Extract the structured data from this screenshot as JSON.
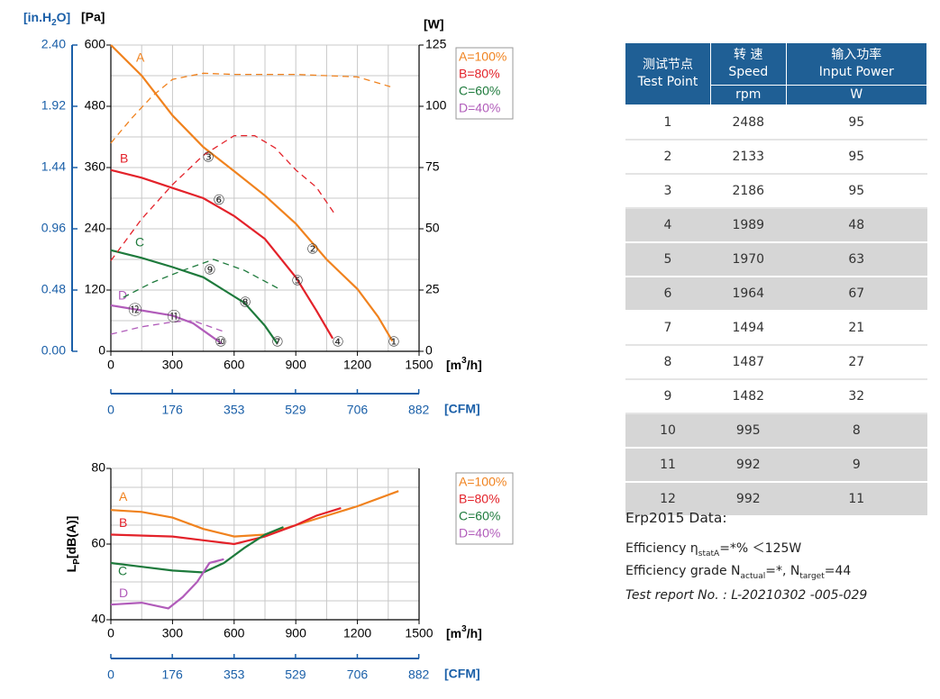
{
  "chart_data": [
    {
      "type": "line",
      "xlim": [
        0,
        1500
      ],
      "xticks": [
        0,
        300,
        600,
        900,
        1200,
        1500
      ],
      "xminor": [
        150,
        450,
        750,
        1050,
        1350
      ],
      "x_label": [
        "[m",
        "3",
        "/h]"
      ],
      "x2lim": [
        0,
        882.9
      ],
      "x2ticks": [
        0,
        176,
        353,
        529,
        706,
        882
      ],
      "x2_label": "[CFM]",
      "ylim": [
        0,
        600
      ],
      "yticks": [
        0,
        120,
        240,
        360,
        480,
        600
      ],
      "yminor": [
        60,
        180,
        300,
        420,
        540
      ],
      "y_label": "[Pa]",
      "y2lim": [
        0,
        125
      ],
      "y2ticks": [
        0,
        25,
        50,
        75,
        100,
        125
      ],
      "y2_label": "[W]",
      "y3lim": [
        0,
        2.4
      ],
      "y3ticks": [
        {
          "value": 0,
          "label": "0.00"
        },
        {
          "value": 0.48,
          "label": "0.48"
        },
        {
          "value": 0.96,
          "label": "0.96"
        },
        {
          "value": 1.44,
          "label": "1.44"
        },
        {
          "value": 1.92,
          "label": "1.92"
        },
        {
          "value": 2.4,
          "label": "2.40"
        }
      ],
      "y3_label": [
        "[in.H",
        "2",
        "O]"
      ],
      "grid": true,
      "legend": "right",
      "series": [
        {
          "name": "A=100%",
          "label": "A",
          "color": "#f0821e",
          "x": [
            0,
            150,
            300,
            450,
            600,
            750,
            900,
            1050,
            1200,
            1300,
            1370
          ],
          "values": [
            600,
            540,
            462,
            400,
            353,
            305,
            250,
            180,
            122,
            68,
            20
          ]
        },
        {
          "name": "B=80%",
          "label": "B",
          "color": "#e3222a",
          "x": [
            0,
            150,
            300,
            450,
            600,
            750,
            900,
            1000,
            1080
          ],
          "values": [
            355,
            340,
            320,
            300,
            265,
            220,
            145,
            80,
            25
          ]
        },
        {
          "name": "C=60%",
          "label": "C",
          "color": "#1e7a3c",
          "x": [
            0,
            150,
            300,
            450,
            550,
            650,
            750,
            810
          ],
          "values": [
            198,
            183,
            165,
            145,
            120,
            95,
            50,
            15
          ]
        },
        {
          "name": "D=40%",
          "label": "D",
          "color": "#b15cba",
          "x": [
            0,
            120,
            300,
            400,
            470,
            540
          ],
          "values": [
            90,
            82,
            70,
            55,
            35,
            15
          ]
        },
        {
          "axis": "y2",
          "dashed": true,
          "color": "#f0821e",
          "x": [
            0,
            100,
            200,
            300,
            450,
            600,
            900,
            1200,
            1360
          ],
          "values": [
            85,
            95,
            104,
            111,
            113.5,
            113,
            113,
            112,
            108
          ]
        },
        {
          "axis": "y2",
          "dashed": true,
          "color": "#e3222a",
          "x": [
            0,
            150,
            300,
            450,
            600,
            700,
            800,
            900,
            1000,
            1090
          ],
          "values": [
            37,
            54,
            68,
            80,
            88,
            88,
            83,
            74,
            67,
            56
          ]
        },
        {
          "axis": "y2",
          "dashed": true,
          "color": "#1e7a3c",
          "x": [
            60,
            200,
            350,
            500,
            650,
            830
          ],
          "values": [
            22,
            28,
            33,
            37.5,
            33,
            25
          ]
        },
        {
          "axis": "y2",
          "dashed": true,
          "color": "#b15cba",
          "x": [
            0,
            150,
            300,
            400,
            550
          ],
          "values": [
            7,
            10,
            12,
            12.5,
            8
          ]
        }
      ],
      "test_points": [
        {
          "label": "①",
          "x": 1377,
          "y": 18
        },
        {
          "label": "②",
          "x": 982,
          "y": 199
        },
        {
          "label": "③",
          "x": 474,
          "y": 379
        },
        {
          "label": "④",
          "x": 1105,
          "y": 18
        },
        {
          "label": "⑤",
          "x": 908,
          "y": 138
        },
        {
          "label": "⑥",
          "x": 526,
          "y": 296
        },
        {
          "label": "⑦",
          "x": 811,
          "y": 18
        },
        {
          "label": "⑧",
          "x": 654,
          "y": 95
        },
        {
          "label": "⑨",
          "x": 482,
          "y": 159
        },
        {
          "label": "⑩",
          "x": 535,
          "y": 18
        },
        {
          "label": "⑪",
          "x": 307,
          "y": 67
        },
        {
          "label": "⑫",
          "x": 118,
          "y": 80
        }
      ]
    },
    {
      "type": "line",
      "xlim": [
        0,
        1500
      ],
      "xticks": [
        0,
        300,
        600,
        900,
        1200,
        1500
      ],
      "xminor": [
        150,
        450,
        750,
        1050,
        1350
      ],
      "x_label": [
        "[m",
        "3",
        "/h]"
      ],
      "x2lim": [
        0,
        882.9
      ],
      "x2ticks": [
        0,
        176,
        353,
        529,
        706,
        882
      ],
      "x2_label": "[CFM]",
      "ylim": [
        40,
        80
      ],
      "yticks": [
        40,
        60,
        80
      ],
      "yminor": [
        45,
        50,
        55,
        65,
        70,
        75
      ],
      "y_label": [
        "L",
        "P",
        "[dB(A)]"
      ],
      "grid": true,
      "legend": "right",
      "series": [
        {
          "name": "A=100%",
          "label": "A",
          "color": "#f0821e",
          "x": [
            0,
            150,
            300,
            450,
            600,
            750,
            900,
            1050,
            1200,
            1400
          ],
          "values": [
            69,
            68.5,
            67,
            64,
            62,
            62.5,
            65,
            67.5,
            70,
            74
          ]
        },
        {
          "name": "B=80%",
          "label": "B",
          "color": "#e3222a",
          "x": [
            0,
            300,
            450,
            600,
            750,
            900,
            1000,
            1120
          ],
          "values": [
            62.5,
            62,
            61,
            60,
            62,
            65,
            67.5,
            69.5
          ]
        },
        {
          "name": "C=60%",
          "label": "C",
          "color": "#1e7a3c",
          "x": [
            0,
            150,
            300,
            450,
            550,
            650,
            750,
            840
          ],
          "values": [
            55,
            54,
            53,
            52.5,
            55,
            59,
            62.5,
            64.5
          ]
        },
        {
          "name": "D=40%",
          "label": "D",
          "color": "#b15cba",
          "x": [
            0,
            150,
            280,
            350,
            420,
            480,
            550
          ],
          "values": [
            44,
            44.5,
            43,
            46,
            50,
            55,
            56
          ]
        }
      ]
    }
  ],
  "table": {
    "header": [
      [
        "测试节点",
        "Test Point"
      ],
      [
        "转 速",
        "Speed"
      ],
      [
        "输入功率",
        "Input Power"
      ]
    ],
    "units": [
      "rpm",
      "W"
    ],
    "rows": [
      [
        1,
        2488,
        95
      ],
      [
        2,
        2133,
        95
      ],
      [
        3,
        2186,
        95
      ],
      [
        4,
        1989,
        48
      ],
      [
        5,
        1970,
        63
      ],
      [
        6,
        1964,
        67
      ],
      [
        7,
        1494,
        21
      ],
      [
        8,
        1487,
        27
      ],
      [
        9,
        1482,
        32
      ],
      [
        10,
        995,
        8
      ],
      [
        11,
        992,
        9
      ],
      [
        12,
        992,
        11
      ]
    ]
  },
  "erp": {
    "title": "Erp2015  Data:",
    "efficiency": [
      "Efficiency η",
      "statA",
      "=*% ＜125W"
    ],
    "grade": [
      "Efficiency grade N",
      "actual",
      "=*, N",
      "target",
      "=44"
    ],
    "report": "Test report No. : L-20210302 -005-029"
  }
}
